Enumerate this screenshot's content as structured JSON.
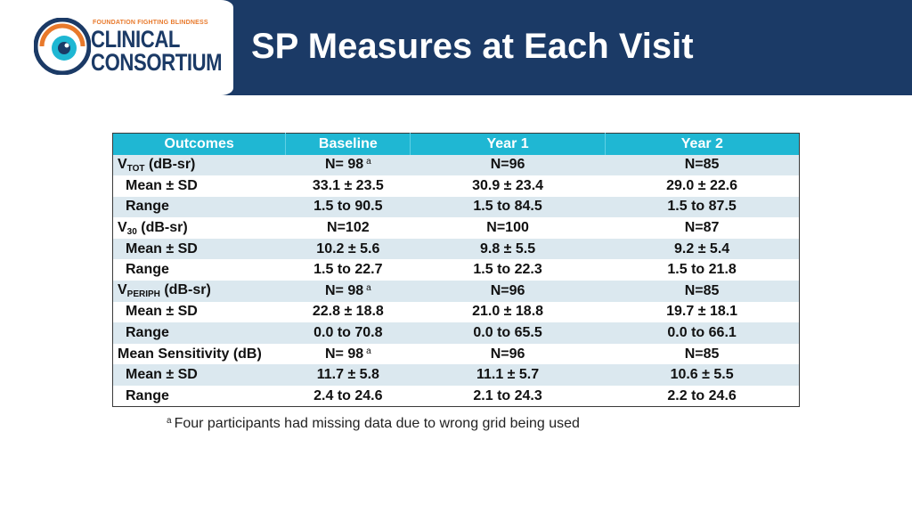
{
  "header": {
    "logo_tagline": "FOUNDATION FIGHTING BLINDNESS",
    "logo_line1": "CLINICAL",
    "logo_line2": "CONSORTIUM",
    "title": "SP Measures at Each Visit"
  },
  "colors": {
    "header_bg": "#1b3a66",
    "table_header_bg": "#1fb7d3",
    "row_stripe": "#dbe8ef",
    "logo_orange": "#e8792b"
  },
  "icons": {
    "logo": "eye-icon"
  },
  "table": {
    "headers": [
      "Outcomes",
      "Baseline",
      "Year 1",
      "Year 2"
    ],
    "rows": [
      {
        "label_main": "V",
        "label_sub": "TOT",
        "label_rest": " (dB-sr)",
        "indent": false,
        "values": [
          "N= 98",
          "N=96",
          "N=85"
        ],
        "baseline_sup": "a"
      },
      {
        "label_main": "Mean ± SD",
        "label_sub": "",
        "label_rest": "",
        "indent": true,
        "values": [
          "33.1 ± 23.5",
          "30.9 ± 23.4",
          "29.0 ± 22.6"
        ],
        "baseline_sup": ""
      },
      {
        "label_main": "Range",
        "label_sub": "",
        "label_rest": "",
        "indent": true,
        "values": [
          "1.5 to 90.5",
          "1.5 to 84.5",
          "1.5 to 87.5"
        ],
        "baseline_sup": ""
      },
      {
        "label_main": "V",
        "label_sub": "30",
        "label_rest": " (dB-sr)",
        "indent": false,
        "values": [
          "N=102",
          "N=100",
          "N=87"
        ],
        "baseline_sup": ""
      },
      {
        "label_main": "Mean ± SD",
        "label_sub": "",
        "label_rest": "",
        "indent": true,
        "values": [
          "10.2 ± 5.6",
          "9.8 ± 5.5",
          "9.2 ± 5.4"
        ],
        "baseline_sup": ""
      },
      {
        "label_main": "Range",
        "label_sub": "",
        "label_rest": "",
        "indent": true,
        "values": [
          "1.5 to 22.7",
          "1.5 to 22.3",
          "1.5 to 21.8"
        ],
        "baseline_sup": ""
      },
      {
        "label_main": "V",
        "label_sub": "PERIPH",
        "label_rest": " (dB-sr)",
        "indent": false,
        "values": [
          "N= 98",
          "N=96",
          "N=85"
        ],
        "baseline_sup": "a"
      },
      {
        "label_main": "Mean ± SD",
        "label_sub": "",
        "label_rest": "",
        "indent": true,
        "values": [
          "22.8 ± 18.8",
          "21.0 ± 18.8",
          "19.7 ± 18.1"
        ],
        "baseline_sup": ""
      },
      {
        "label_main": "Range",
        "label_sub": "",
        "label_rest": "",
        "indent": true,
        "values": [
          "0.0 to 70.8",
          "0.0 to 65.5",
          "0.0 to 66.1"
        ],
        "baseline_sup": ""
      },
      {
        "label_main": "Mean Sensitivity (dB)",
        "label_sub": "",
        "label_rest": "",
        "indent": false,
        "values": [
          "N= 98",
          "N=96",
          "N=85"
        ],
        "baseline_sup": "a"
      },
      {
        "label_main": "Mean ± SD",
        "label_sub": "",
        "label_rest": "",
        "indent": true,
        "values": [
          "11.7 ± 5.8",
          "11.1 ± 5.7",
          "10.6 ± 5.5"
        ],
        "baseline_sup": ""
      },
      {
        "label_main": "Range",
        "label_sub": "",
        "label_rest": "",
        "indent": true,
        "values": [
          "2.4 to 24.6",
          "2.1 to 24.3",
          "2.2 to 24.6"
        ],
        "baseline_sup": ""
      }
    ]
  },
  "footnote": {
    "marker": "a",
    "text": "Four participants had missing data due to wrong grid being used"
  }
}
